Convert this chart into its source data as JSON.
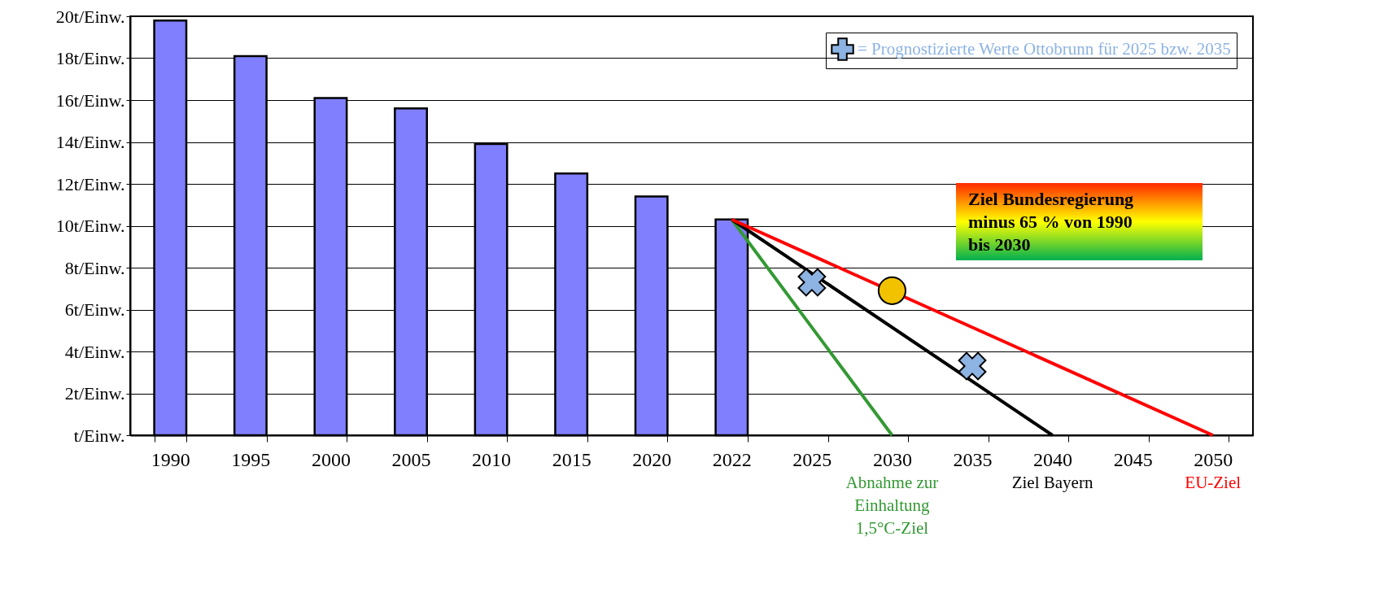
{
  "chart_data": {
    "type": "bar",
    "categories": [
      "1990",
      "1995",
      "2000",
      "2005",
      "2010",
      "2015",
      "2020",
      "2022",
      "2025",
      "2030",
      "2035",
      "2040",
      "2045",
      "2050"
    ],
    "ylim": [
      0,
      20
    ],
    "yticks": [
      {
        "value": 0,
        "label": "t/Einw."
      },
      {
        "value": 2,
        "label": "2t/Einw."
      },
      {
        "value": 4,
        "label": "4t/Einw."
      },
      {
        "value": 6,
        "label": "6t/Einw."
      },
      {
        "value": 8,
        "label": "8t/Einw."
      },
      {
        "value": 10,
        "label": "10t/Einw."
      },
      {
        "value": 12,
        "label": "12t/Einw."
      },
      {
        "value": 14,
        "label": "14t/Einw."
      },
      {
        "value": 16,
        "label": "16t/Einw."
      },
      {
        "value": 18,
        "label": "18t/Einw."
      },
      {
        "value": 20,
        "label": "20t/Einw."
      }
    ],
    "grid": "y",
    "legend": "top right",
    "annotations": [
      "Ziel Bundesregierung minus 65 % von 1990 bis 2030"
    ],
    "series": [
      {
        "color": "#8080ff",
        "values": [
          19.8,
          18.1,
          16.1,
          15.6,
          13.9,
          12.5,
          11.4,
          10.3,
          null,
          null,
          null,
          null,
          null,
          null
        ]
      },
      {
        "type": "line",
        "name": "Abnahme zur Einhaltung 1,5°C-Ziel",
        "color": "#339933",
        "values": [
          null,
          null,
          null,
          null,
          null,
          null,
          null,
          10.3,
          null,
          0,
          null,
          null,
          null,
          null
        ]
      },
      {
        "type": "line",
        "name": "Ziel Bayern",
        "color": "#000000",
        "values": [
          null,
          null,
          null,
          null,
          null,
          null,
          null,
          10.3,
          null,
          null,
          null,
          0,
          null,
          null
        ]
      },
      {
        "type": "line",
        "name": "EU-Ziel",
        "color": "#ff0000",
        "values": [
          null,
          null,
          null,
          null,
          null,
          null,
          null,
          10.3,
          null,
          null,
          null,
          null,
          null,
          0
        ]
      },
      {
        "type": "scatter",
        "name": "= Prognostizierte Werte Ottobrunn für 2025 bzw. 2035",
        "color": "#8db3e2",
        "marker": "cross",
        "values": [
          null,
          null,
          null,
          null,
          null,
          null,
          null,
          null,
          7.3,
          null,
          3.3,
          null,
          null,
          null
        ]
      },
      {
        "type": "scatter",
        "color": "#f2c200",
        "marker": "circle",
        "values": [
          null,
          null,
          null,
          null,
          null,
          null,
          null,
          null,
          null,
          6.9,
          null,
          null,
          null,
          null
        ]
      }
    ]
  }
}
